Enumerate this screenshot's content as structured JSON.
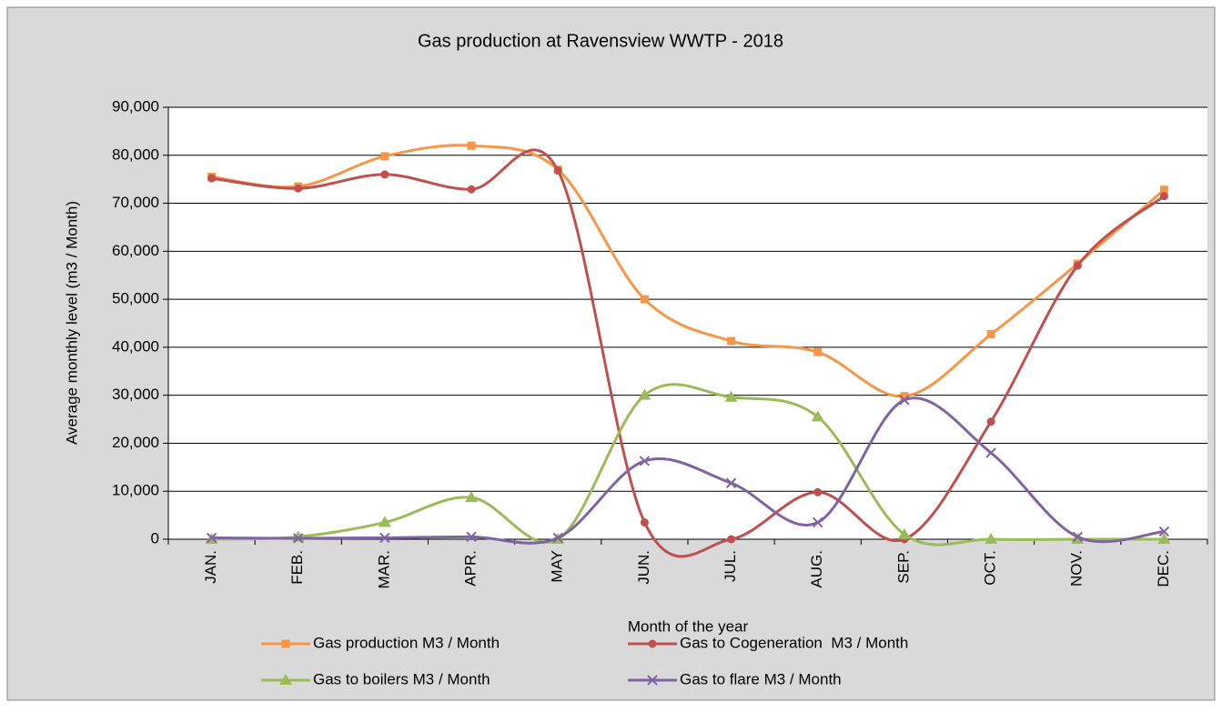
{
  "chart_data": {
    "type": "line",
    "title": "Gas production at Ravensview WWTP - 2018",
    "x_label": "Month of the year",
    "y_label": "Average monthly level (m3 / Month)",
    "categories": [
      "JAN.",
      "FEB.",
      "MAR.",
      "APR.",
      "MAY",
      "JUN.",
      "JUL.",
      "AUG.",
      "SEP.",
      "OCT.",
      "NOV.",
      "DEC."
    ],
    "series": [
      {
        "name": "Gas production M3 / Month",
        "color": "#f79646",
        "marker": "square",
        "values": [
          75500,
          73500,
          79800,
          82000,
          77000,
          50000,
          41300,
          39000,
          29800,
          42700,
          57400,
          72800
        ]
      },
      {
        "name": "Gas to Cogeneration  M3 / Month",
        "color": "#c0504d",
        "marker": "circle",
        "values": [
          75200,
          73100,
          76000,
          72900,
          76800,
          3500,
          0,
          9800,
          0,
          24500,
          57000,
          71500
        ]
      },
      {
        "name": "Gas to boilers M3 / Month",
        "color": "#9bbb59",
        "marker": "triangle",
        "values": [
          0,
          500,
          3500,
          8700,
          0,
          30000,
          29600,
          25500,
          1000,
          0,
          0,
          0
        ]
      },
      {
        "name": "Gas to flare M3 / Month",
        "color": "#8064a2",
        "marker": "x",
        "values": [
          300,
          200,
          300,
          500,
          300,
          16300,
          11700,
          3500,
          29000,
          18000,
          500,
          1600
        ]
      }
    ],
    "ylim": [
      0,
      90000
    ],
    "yticks": [
      0,
      {
        "value": 10000,
        "label": "10,000"
      },
      {
        "value": 20000,
        "label": "20,000"
      },
      {
        "value": 30000,
        "label": "30,000"
      },
      {
        "value": 40000,
        "label": "40,000"
      },
      {
        "value": 50000,
        "label": "50,000"
      },
      {
        "value": 60000,
        "label": "60,000"
      },
      {
        "value": 70000,
        "label": "70,000"
      },
      {
        "value": 80000,
        "label": "80,000"
      },
      {
        "value": 90000,
        "label": "90,000"
      }
    ],
    "grid": true,
    "smooth": true,
    "legend": "bottom"
  }
}
